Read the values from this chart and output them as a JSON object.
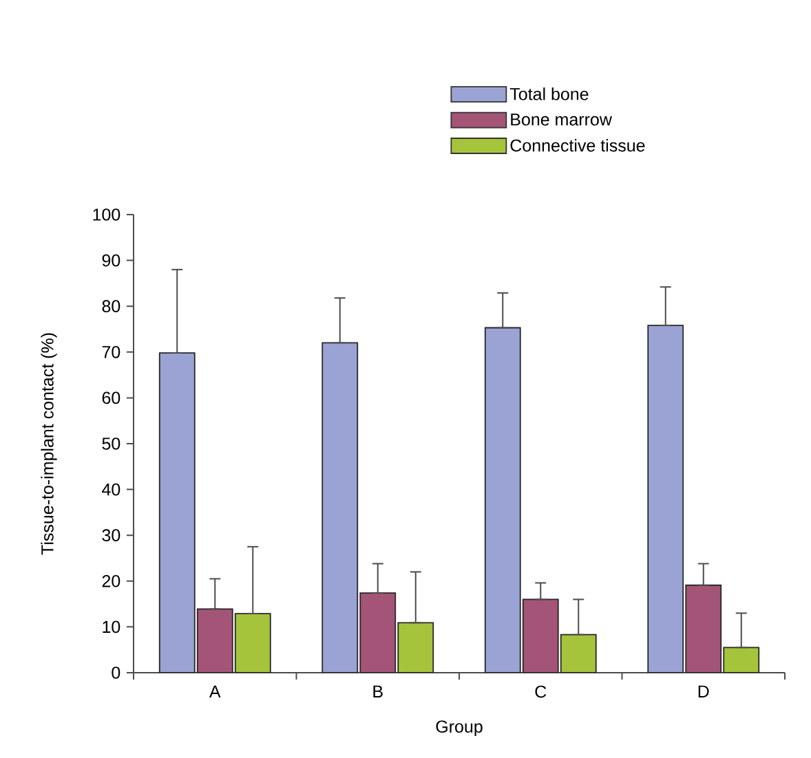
{
  "chart_data": {
    "type": "bar",
    "xlabel": "Group",
    "ylabel": "Tissue-to-implant contact (%)",
    "categories": [
      "A",
      "B",
      "C",
      "D"
    ],
    "series": [
      {
        "name": "Total bone",
        "color": "#9ba3d4",
        "values": [
          69.8,
          72.0,
          75.3,
          75.8
        ],
        "errors": [
          [
            69.8,
            88.0
          ],
          [
            72.0,
            81.8
          ],
          [
            75.3,
            82.9
          ],
          [
            75.8,
            84.2
          ]
        ]
      },
      {
        "name": "Bone marrow",
        "color": "#a45577",
        "values": [
          13.9,
          17.4,
          16.0,
          19.1
        ],
        "errors": [
          [
            13.9,
            20.5
          ],
          [
            17.4,
            23.8
          ],
          [
            16.0,
            19.6
          ],
          [
            19.1,
            23.8
          ]
        ]
      },
      {
        "name": "Connective tissue",
        "color": "#a5c43c",
        "values": [
          12.9,
          10.9,
          8.3,
          5.5
        ],
        "errors": [
          [
            12.9,
            27.5
          ],
          [
            10.9,
            22.0
          ],
          [
            8.3,
            16.0
          ],
          [
            5.5,
            13.0
          ]
        ]
      }
    ],
    "ylim": [
      0,
      100
    ],
    "yticks": [
      0,
      10,
      20,
      30,
      40,
      50,
      60,
      70,
      80,
      90,
      100
    ],
    "legend": "top right"
  }
}
